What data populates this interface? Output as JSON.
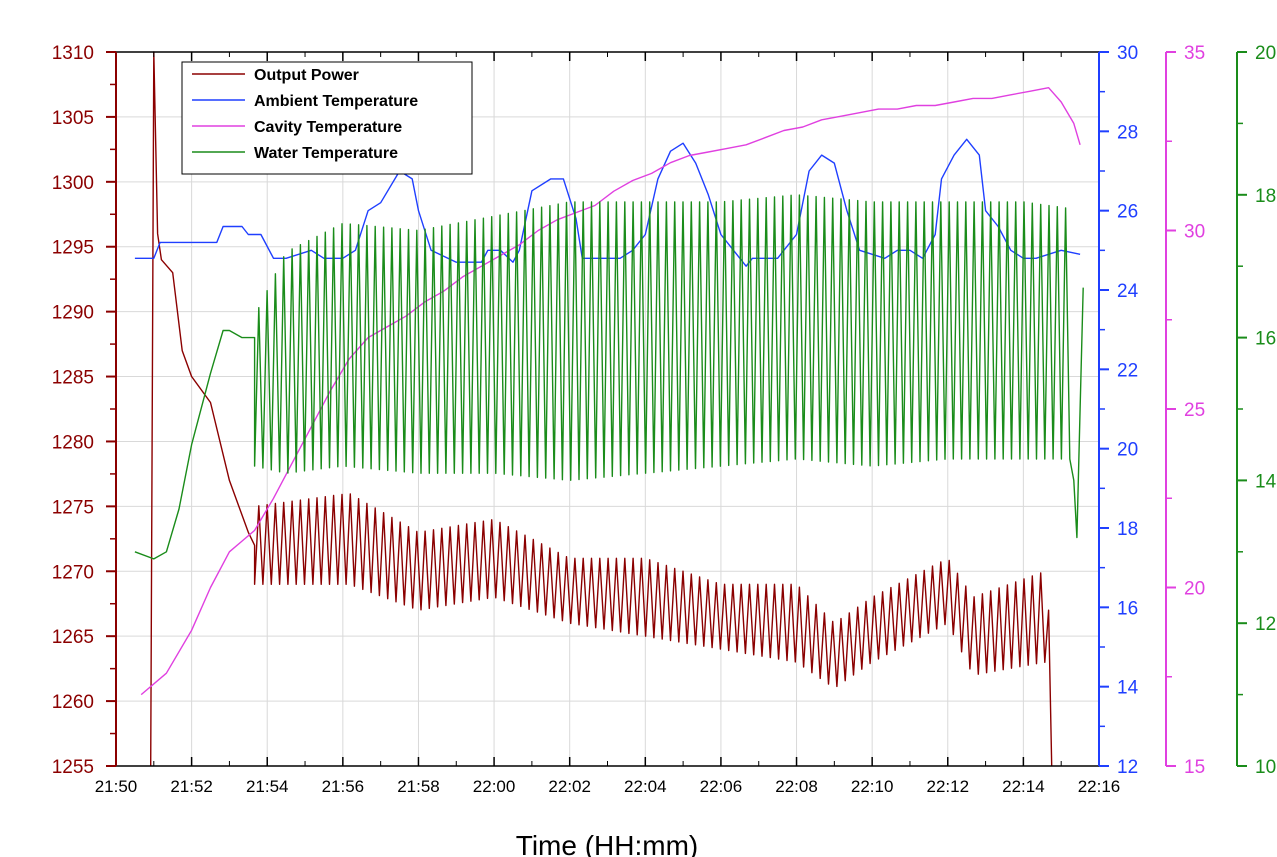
{
  "chart_data": {
    "type": "line",
    "xlabel": "Time (HH:mm)",
    "x_ticks": [
      "21:50",
      "21:52",
      "21:54",
      "21:56",
      "21:58",
      "22:00",
      "22:02",
      "22:04",
      "22:06",
      "22:08",
      "22:10",
      "22:12",
      "22:14",
      "22:16"
    ],
    "grid": true,
    "legend_position": "top-left",
    "axes": {
      "left": {
        "series": "Output Power",
        "ylim": [
          1255,
          1310
        ],
        "ticks": [
          1255,
          1260,
          1265,
          1270,
          1275,
          1280,
          1285,
          1290,
          1295,
          1300,
          1305,
          1310
        ],
        "color": "#8b0000"
      },
      "right1": {
        "series": "Ambient Temperature",
        "ylim": [
          12,
          30
        ],
        "ticks": [
          12,
          14,
          16,
          18,
          20,
          22,
          24,
          26,
          28,
          30
        ],
        "color": "#1f3fff"
      },
      "right2": {
        "series": "Cavity Temperature",
        "ylim": [
          15,
          35
        ],
        "ticks": [
          15,
          20,
          25,
          30,
          35
        ],
        "color": "#e040e0"
      },
      "right3": {
        "series": "Water Temperature",
        "ylim": [
          10,
          20
        ],
        "ticks": [
          10,
          12,
          14,
          16,
          18,
          20
        ],
        "color": "#1a8c1a"
      }
    },
    "series": [
      {
        "name": "Output Power",
        "color": "#8b0000",
        "axis": "left",
        "x": [
          "21:50:55",
          "21:51:00",
          "21:51:06",
          "21:51:12",
          "21:51:30",
          "21:51:45",
          "21:52:00",
          "21:52:30",
          "21:53:00",
          "21:53:30",
          "21:53:40"
        ],
        "y": [
          1255,
          1310,
          1296,
          1294,
          1293,
          1287,
          1285,
          1283,
          1277,
          1273,
          1272
        ],
        "oscillation": [
          {
            "x": [
              "21:53:40",
              "21:56:10",
              "21:58:00",
              "22:00:00",
              "22:02:00",
              "22:04:00",
              "22:06:00",
              "22:08:00",
              "22:09:00",
              "22:10:00",
              "22:12:00",
              "22:12:40",
              "22:14:35"
            ],
            "low": [
              1269,
              1269,
              1267,
              1268,
              1266,
              1265,
              1264,
              1263,
              1261,
              1263,
              1266,
              1262,
              1263
            ],
            "high": [
              1275,
              1276,
              1273,
              1274,
              1271,
              1271,
              1269,
              1269,
              1266,
              1268,
              1271,
              1268,
              1270
            ]
          }
        ],
        "end": {
          "x": [
            "22:14:40",
            "22:14:45"
          ],
          "y": [
            1267,
            1255
          ]
        }
      },
      {
        "name": "Ambient Temperature",
        "color": "#1f3fff",
        "axis": "right1",
        "x": [
          "21:50:30",
          "21:51:00",
          "21:51:10",
          "21:52:40",
          "21:52:50",
          "21:53:20",
          "21:53:30",
          "21:53:50",
          "21:54:10",
          "21:54:30",
          "21:55:10",
          "21:55:30",
          "21:56:00",
          "21:56:20",
          "21:56:40",
          "21:57:00",
          "21:57:30",
          "21:57:50",
          "21:58:00",
          "21:58:20",
          "21:59:00",
          "21:59:40",
          "21:59:50",
          "22:00:10",
          "22:00:30",
          "22:00:40",
          "22:01:00",
          "22:01:30",
          "22:01:50",
          "22:02:10",
          "22:02:20",
          "22:03:20",
          "22:03:40",
          "22:04:00",
          "22:04:20",
          "22:04:40",
          "22:05:00",
          "22:05:20",
          "22:05:40",
          "22:06:00",
          "22:06:20",
          "22:06:40",
          "22:06:50",
          "22:07:30",
          "22:07:40",
          "22:08:00",
          "22:08:20",
          "22:08:40",
          "22:09:00",
          "22:09:20",
          "22:09:40",
          "22:10:00",
          "22:10:20",
          "22:10:40",
          "22:11:00",
          "22:11:20",
          "22:11:40",
          "22:11:50",
          "22:12:10",
          "22:12:30",
          "22:12:50",
          "22:13:00",
          "22:13:20",
          "22:13:40",
          "22:14:00",
          "22:14:20",
          "22:15:00",
          "22:15:30"
        ],
        "y": [
          24.8,
          24.8,
          25.2,
          25.2,
          25.6,
          25.6,
          25.4,
          25.4,
          24.8,
          24.8,
          25.0,
          24.8,
          24.8,
          25.0,
          26.0,
          26.2,
          27.0,
          26.8,
          26.0,
          25.0,
          24.7,
          24.7,
          25.0,
          25.0,
          24.7,
          25.0,
          26.5,
          26.8,
          26.8,
          25.8,
          24.8,
          24.8,
          25.0,
          25.4,
          26.8,
          27.5,
          27.7,
          27.2,
          26.4,
          25.4,
          25.0,
          24.6,
          24.8,
          24.8,
          25.0,
          25.4,
          27.0,
          27.4,
          27.2,
          26.0,
          25.0,
          24.9,
          24.8,
          25.0,
          25.0,
          24.8,
          25.4,
          26.8,
          27.4,
          27.8,
          27.4,
          26.0,
          25.6,
          25.0,
          24.8,
          24.8,
          25.0,
          24.9
        ]
      },
      {
        "name": "Cavity Temperature",
        "color": "#e040e0",
        "axis": "right2",
        "x": [
          "21:50:40",
          "21:51:20",
          "21:52:00",
          "21:52:30",
          "21:53:00",
          "21:53:20",
          "21:53:40",
          "21:54:10",
          "21:54:40",
          "21:55:10",
          "21:55:40",
          "21:56:10",
          "21:56:40",
          "21:57:10",
          "21:57:40",
          "21:58:10",
          "21:58:40",
          "21:59:10",
          "21:59:40",
          "22:00:10",
          "22:00:40",
          "22:01:10",
          "22:01:40",
          "22:02:10",
          "22:02:40",
          "22:03:10",
          "22:03:40",
          "22:04:10",
          "22:04:40",
          "22:05:10",
          "22:05:40",
          "22:06:10",
          "22:06:40",
          "22:07:10",
          "22:07:40",
          "22:08:10",
          "22:08:40",
          "22:09:10",
          "22:09:40",
          "22:10:10",
          "22:10:40",
          "22:11:10",
          "22:11:40",
          "22:12:10",
          "22:12:40",
          "22:13:10",
          "22:13:40",
          "22:14:10",
          "22:14:40",
          "22:15:00",
          "22:15:20",
          "22:15:30"
        ],
        "y": [
          17.0,
          17.6,
          18.8,
          20.0,
          21.0,
          21.3,
          21.6,
          22.5,
          23.5,
          24.5,
          25.5,
          26.4,
          27.0,
          27.3,
          27.6,
          28.0,
          28.3,
          28.7,
          29.0,
          29.3,
          29.6,
          30.0,
          30.3,
          30.5,
          30.7,
          31.1,
          31.4,
          31.6,
          31.9,
          32.1,
          32.2,
          32.3,
          32.4,
          32.6,
          32.8,
          32.9,
          33.1,
          33.2,
          33.3,
          33.4,
          33.4,
          33.5,
          33.5,
          33.6,
          33.7,
          33.7,
          33.8,
          33.9,
          34.0,
          33.6,
          33.0,
          32.4
        ]
      },
      {
        "name": "Water Temperature",
        "color": "#1a8c1a",
        "axis": "right3",
        "x": [
          "21:50:30",
          "21:51:00",
          "21:51:20",
          "21:51:40",
          "21:52:00",
          "21:52:30",
          "21:52:50",
          "21:53:00",
          "21:53:20",
          "21:53:40"
        ],
        "y": [
          13.0,
          12.9,
          13.0,
          13.6,
          14.5,
          15.5,
          16.1,
          16.1,
          16.0,
          16.0
        ],
        "oscillation": [
          {
            "x": [
              "21:53:40",
              "21:54:30",
              "21:56:00",
              "21:58:00",
              "22:00:00",
              "22:02:00",
              "22:04:00",
              "22:06:00",
              "22:08:00",
              "22:10:00",
              "22:12:00",
              "22:14:00",
              "22:15:20"
            ],
            "low": [
              14.2,
              14.1,
              14.2,
              14.1,
              14.1,
              14.0,
              14.1,
              14.2,
              14.3,
              14.2,
              14.3,
              14.3,
              14.3
            ],
            "high": [
              16.3,
              17.2,
              17.6,
              17.5,
              17.7,
              17.9,
              17.9,
              17.9,
              18.0,
              17.9,
              17.9,
              17.9,
              17.8
            ]
          }
        ],
        "end": {
          "x": [
            "22:15:20",
            "22:15:25",
            "22:15:30",
            "22:15:35"
          ],
          "y": [
            14.0,
            13.2,
            15.0,
            16.7
          ]
        }
      }
    ]
  }
}
